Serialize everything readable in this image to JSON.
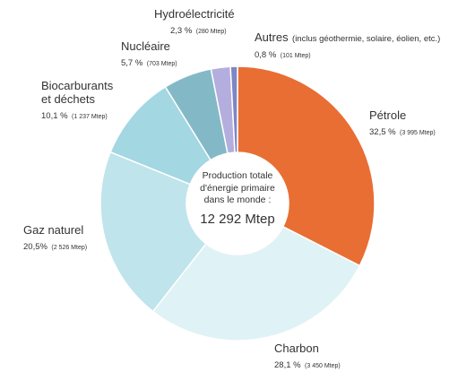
{
  "chart_data": {
    "type": "pie",
    "donut": true,
    "center": {
      "line1": "Production totale",
      "line2": "d'énergie primaire",
      "line3": "dans le monde :",
      "total": "12 292 Mtep"
    },
    "slices": [
      {
        "key": "petrole",
        "name": "Pétrole",
        "name2": "",
        "pct_text": "32,5 %",
        "mtep_text": "(3 995 Mtep)",
        "value": 3995,
        "color": "#E86E33"
      },
      {
        "key": "charbon",
        "name": "Charbon",
        "name2": "",
        "pct_text": "28,1 %",
        "mtep_text": "(3 450 Mtep)",
        "value": 3450,
        "color": "#DFF2F5"
      },
      {
        "key": "gaz",
        "name": "Gaz naturel",
        "name2": "",
        "pct_text": "20,5%",
        "mtep_text": "(2 526 Mtep)",
        "value": 2526,
        "color": "#BFE4EB"
      },
      {
        "key": "bio",
        "name": "Biocarburants",
        "name2": "et déchets",
        "pct_text": "10,1 %",
        "mtep_text": "(1 237 Mtep)",
        "value": 1237,
        "color": "#A3D7E2"
      },
      {
        "key": "nucleaire",
        "name": "Nucléaire",
        "name2": "",
        "pct_text": "5,7 %",
        "mtep_text": "(703 Mtep)",
        "value": 703,
        "color": "#83B9C6"
      },
      {
        "key": "hydro",
        "name": "Hydroélectricité",
        "name2": "",
        "pct_text": "2,3 %",
        "mtep_text": "(280 Mtep)",
        "value": 280,
        "color": "#B3AEDD"
      },
      {
        "key": "autres",
        "name": "Autres",
        "name2": "(inclus géothermie, solaire, éolien, etc.)",
        "pct_text": "0,8 %",
        "mtep_text": "(101 Mtep)",
        "value": 101,
        "color": "#7E86C3"
      }
    ]
  }
}
